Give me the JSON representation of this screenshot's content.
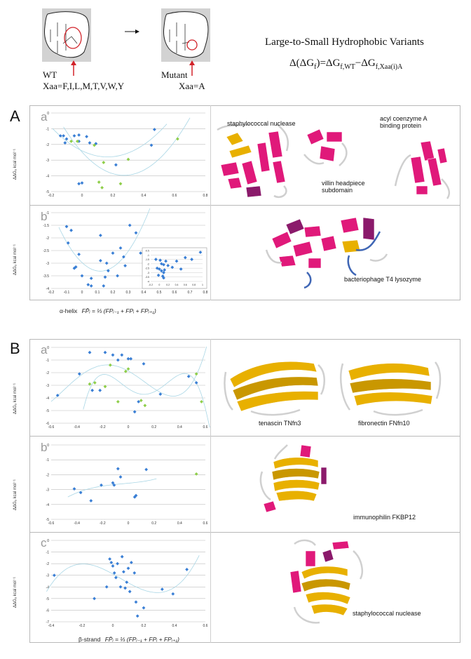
{
  "header": {
    "wt_label": "WT",
    "wt_xaa": "Xaa=F,I,L,M,T,V,W,Y",
    "mutant_label": "Mutant",
    "mutant_xaa": "Xaa=A",
    "title": "Large-to-Small Hydrophobic Variants",
    "equation": "Δ(ΔG",
    "equation_sub_f": "f",
    "equation_mid": ")=ΔG",
    "equation_sub_wt": "f,WT",
    "equation_minus": "−ΔG",
    "equation_sub_mut": "f,Xaa(i)A"
  },
  "panels": {
    "A_label": "A",
    "B_label": "B",
    "A_xaxis_caption": "α-helix",
    "B_xaxis_caption": "β-strand",
    "fp_formula": "FP̄ᵢ = ⅓ (FPᵢ₋₁ + FPᵢ + FPᵢ₊₁)",
    "ylabel": "ΔΔGᵤ kcal mol⁻¹"
  },
  "proteins": {
    "staph": "staphylococcal nuclease",
    "villin": "villin headpiece subdomain",
    "villin_1": "villin headpiece",
    "villin_2": "subdomain",
    "acyl_1": "acyl coenzyme A",
    "acyl_2": "binding protein",
    "t4": "bacteriophage T4 lysozyme",
    "tenascin": "tenascin TNfn3",
    "fibronectin": "fibronectin FNfn10",
    "fkbp": "immunophilin FKBP12",
    "staph_b": "staphylococcal nuclease"
  },
  "colors": {
    "blue": "#3a7fd5",
    "green": "#8fce4a",
    "fit": "#a9d6e5",
    "helix": "#e0197a",
    "strand": "#e8b000"
  },
  "chart_data": [
    {
      "id": "A-a",
      "type": "scatter",
      "subpanel": "a",
      "xlim": [
        -0.2,
        0.8
      ],
      "ylim": [
        -5,
        0
      ],
      "xticks": [
        "-0.2",
        "0",
        "0.2",
        "0.4",
        "0.6",
        "0.8"
      ],
      "yticks": [
        "0",
        "-1",
        "-2",
        "-3",
        "-4",
        "-5"
      ],
      "ylabel": "ΔΔGᵤ kcal mol⁻¹",
      "series": [
        {
          "name": "blue",
          "x": [
            -0.14,
            -0.12,
            -0.11,
            -0.1,
            -0.05,
            -0.02,
            -0.02,
            0.0,
            0.03,
            0.05,
            0.09,
            0.22,
            0.45,
            0.47,
            -0.02
          ],
          "y": [
            -1.45,
            -1.45,
            -1.9,
            -1.65,
            -1.45,
            -1.4,
            -1.8,
            -4.45,
            -1.5,
            -1.9,
            -1.95,
            -3.3,
            -2.05,
            -1.05,
            -4.5
          ]
        },
        {
          "name": "green",
          "x": [
            -0.07,
            -0.03,
            0.08,
            0.11,
            0.14,
            0.25,
            0.3,
            0.62,
            0.13
          ],
          "y": [
            -1.8,
            -1.8,
            -2.05,
            -4.4,
            -3.15,
            -4.5,
            -2.95,
            -1.65,
            -4.75
          ]
        }
      ]
    },
    {
      "id": "A-b",
      "type": "scatter",
      "subpanel": "b",
      "xlim": [
        -0.2,
        0.8
      ],
      "ylim": [
        -4,
        -1
      ],
      "xticks": [
        "-0.2",
        "-0.1",
        "0",
        "0.1",
        "0.2",
        "0.3",
        "0.4",
        "0.5",
        "0.6",
        "0.7",
        "0.8"
      ],
      "yticks": [
        "-1",
        "-1.5",
        "-2",
        "-2.5",
        "-3",
        "-3.5",
        "-4"
      ],
      "ylabel": "ΔΔGᵤ kcal mol⁻¹",
      "series": [
        {
          "name": "blue",
          "x": [
            -0.1,
            -0.09,
            -0.07,
            -0.05,
            -0.04,
            -0.02,
            0.0,
            0.04,
            0.06,
            0.12,
            0.14,
            0.15,
            0.16,
            0.17,
            0.23,
            0.25,
            0.27,
            0.28,
            0.31,
            0.35,
            0.38,
            0.06,
            0.12,
            0.2
          ],
          "y": [
            -1.55,
            -2.2,
            -1.7,
            -3.2,
            -3.15,
            -2.65,
            -3.5,
            -3.85,
            -3.9,
            -1.9,
            -3.9,
            -3.55,
            -3.0,
            -3.3,
            -3.5,
            -2.4,
            -2.75,
            -3.1,
            -1.5,
            -1.8,
            -2.6,
            -3.6,
            -2.9,
            -2.6
          ]
        }
      ],
      "inset": {
        "xlim": [
          -0.2,
          1
        ],
        "ylim": [
          -4,
          -0.5
        ],
        "xticks": [
          "-0.2",
          "0",
          "0.2",
          "0.4",
          "0.6",
          "0.8",
          "1"
        ],
        "yticks": [
          "-0.5",
          "-1",
          "-1.5",
          "-2",
          "-2.5",
          "-3",
          "-3.5",
          "-4"
        ],
        "x": [
          -0.08,
          -0.05,
          -0.02,
          0.0,
          0.02,
          0.05,
          0.08,
          0.1,
          0.1,
          0.12,
          0.15,
          0.2,
          0.3,
          0.4,
          0.5,
          0.6,
          0.75,
          0.95,
          0.1,
          0.05
        ],
        "y": [
          -1.5,
          -2.5,
          -3.3,
          -2.6,
          -1.6,
          -2.8,
          -3.4,
          -2.1,
          -3.0,
          -2.7,
          -1.7,
          -2.2,
          -2.4,
          -1.7,
          -2.6,
          -1.3,
          -1.5,
          -0.7,
          -3.6,
          -2.0
        ]
      }
    },
    {
      "id": "B-a",
      "type": "scatter",
      "subpanel": "a",
      "xlim": [
        -0.6,
        0.6
      ],
      "ylim": [
        -6,
        0
      ],
      "xticks": [
        "-0.6",
        "-0.4",
        "-0.2",
        "0",
        "0.2",
        "0.4",
        "0.6"
      ],
      "yticks": [
        "0",
        "-1",
        "-2",
        "-3",
        "-4",
        "-5",
        "-6"
      ],
      "ylabel": "ΔΔGᵤ kcal mol⁻¹",
      "series": [
        {
          "name": "blue",
          "x": [
            -0.55,
            -0.38,
            -0.3,
            -0.28,
            -0.22,
            -0.18,
            -0.12,
            -0.08,
            -0.05,
            0.0,
            0.02,
            0.05,
            0.08,
            0.12,
            0.25,
            0.47,
            0.53
          ],
          "y": [
            -3.8,
            -2.1,
            -0.4,
            -3.4,
            -3.4,
            -0.4,
            -0.6,
            -1.0,
            -0.6,
            -0.9,
            -0.9,
            -5.1,
            -4.3,
            -1.3,
            -3.7,
            -2.3,
            -2.8
          ]
        },
        {
          "name": "green",
          "x": [
            -0.3,
            -0.26,
            -0.18,
            -0.14,
            -0.08,
            -0.02,
            0.0,
            0.1,
            0.13,
            0.53,
            0.57
          ],
          "y": [
            -2.9,
            -2.8,
            -3.1,
            -1.4,
            -4.3,
            -1.9,
            -1.7,
            -4.2,
            -4.6,
            -2.1,
            -4.3
          ]
        }
      ]
    },
    {
      "id": "B-b",
      "type": "scatter",
      "subpanel": "b",
      "xlim": [
        -0.6,
        0.6
      ],
      "ylim": [
        -5,
        0
      ],
      "xticks": [
        "-0.6",
        "-0.4",
        "-0.2",
        "0",
        "0.2",
        "0.4",
        "0.6"
      ],
      "yticks": [
        "0",
        "-1",
        "-2",
        "-3",
        "-4",
        "-5"
      ],
      "ylabel": "ΔΔGᵤ kcal mol⁻¹",
      "series": [
        {
          "name": "blue",
          "x": [
            -0.42,
            -0.37,
            -0.29,
            -0.21,
            -0.12,
            -0.11,
            -0.08,
            -0.06,
            0.05,
            0.06,
            0.14
          ],
          "y": [
            -2.95,
            -3.2,
            -3.75,
            -2.7,
            -2.55,
            -2.7,
            -1.6,
            -2.15,
            -3.5,
            -3.4,
            -1.65
          ]
        },
        {
          "name": "green",
          "x": [
            0.53
          ],
          "y": [
            -1.95
          ]
        }
      ]
    },
    {
      "id": "B-c",
      "type": "scatter",
      "subpanel": "c",
      "xlim": [
        -0.4,
        0.6
      ],
      "ylim": [
        -7,
        0
      ],
      "xticks": [
        "-0.4",
        "-0.2",
        "0",
        "0.2",
        "0.4",
        "0.6"
      ],
      "yticks": [
        "0",
        "-1",
        "-2",
        "-3",
        "-4",
        "-5",
        "-6",
        "-7"
      ],
      "ylabel": "ΔΔGᵤ kcal mol⁻¹",
      "series": [
        {
          "name": "blue",
          "x": [
            -0.38,
            -0.12,
            -0.04,
            -0.02,
            0.0,
            0.01,
            0.03,
            0.05,
            0.06,
            0.07,
            0.08,
            0.1,
            0.12,
            0.14,
            0.15,
            0.16,
            0.2,
            0.32,
            0.39,
            0.48,
            0.02,
            0.09,
            -0.01,
            0.11
          ],
          "y": [
            -3.0,
            -5.0,
            -4.0,
            -1.6,
            -2.2,
            -2.8,
            -2.0,
            -4.0,
            -1.4,
            -2.7,
            -4.1,
            -2.4,
            -1.9,
            -2.8,
            -5.3,
            -6.5,
            -5.8,
            -4.2,
            -4.6,
            -2.5,
            -3.2,
            -3.6,
            -1.9,
            -4.4
          ]
        }
      ]
    }
  ]
}
